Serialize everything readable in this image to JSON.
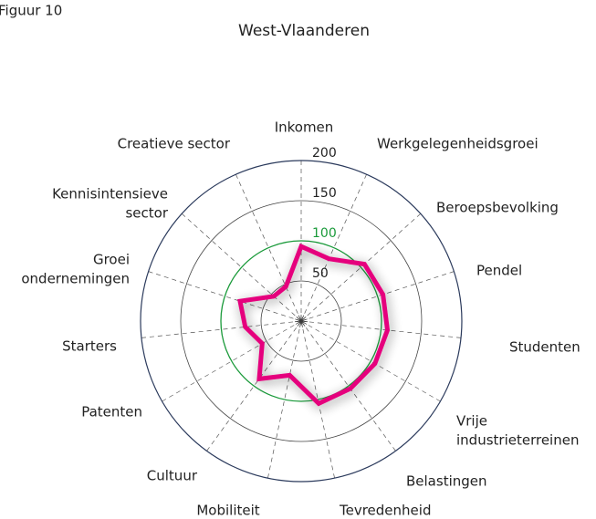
{
  "chart_data": {
    "type": "radar",
    "figure_label": "Figuur 10",
    "title": "West-Vlaanderen",
    "categories": [
      [
        "Inkomen"
      ],
      [
        "Werkgelegenheidsgroei"
      ],
      [
        "Beroepsbevolking"
      ],
      [
        "Pendel"
      ],
      [
        "Studenten"
      ],
      [
        "Vrije",
        "industrieterreinen"
      ],
      [
        "Belastingen"
      ],
      [
        "Tevredenheid"
      ],
      [
        "Mobiliteit"
      ],
      [
        "Cultuur"
      ],
      [
        "Patenten"
      ],
      [
        "Starters"
      ],
      [
        "Groei",
        "ondernemingen"
      ],
      [
        "Kennisintensieve",
        "sector"
      ],
      [
        "Creatieve sector"
      ]
    ],
    "series": [
      {
        "color": "#e5007d",
        "values": [
          93,
          85,
          106,
          107,
          108,
          106,
          104,
          105,
          69,
          89,
          56,
          70,
          80,
          46,
          47
        ]
      }
    ],
    "rlim": [
      0,
      200
    ],
    "rticks": [
      50,
      100,
      150,
      200
    ],
    "reference_tick_color": "#1a9a3a",
    "reference_value": 100
  }
}
